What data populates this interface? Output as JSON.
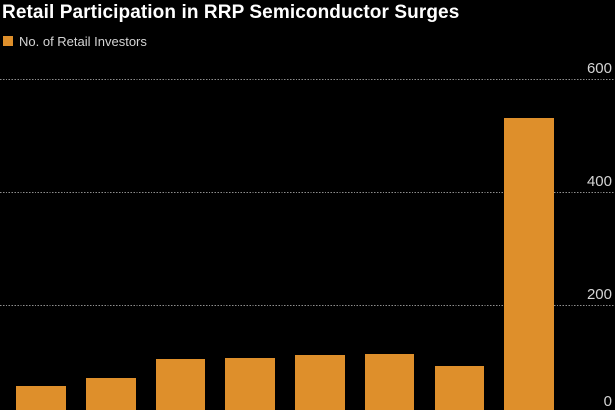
{
  "title": "Retail Participation in RRP Semiconductor Surges",
  "legend": {
    "label": "No. of Retail Investors"
  },
  "colors": {
    "background": "#000000",
    "bar": "#DE8F2B",
    "title_text": "#FFFFFF",
    "axis_text": "#D5D5D5",
    "gridline": "#8F8F8F"
  },
  "y_axis": {
    "tick_labels": [
      "600",
      "400",
      "200",
      "0"
    ],
    "position": "right"
  },
  "chart_data": {
    "type": "bar",
    "title": "Retail Participation in RRP Semiconductor Surges",
    "categories": [
      "",
      "",
      "",
      "",
      "",
      "",
      "",
      ""
    ],
    "series": [
      {
        "name": "No. of Retail Investors",
        "values": [
          55,
          70,
          103,
          106,
          110,
          112,
          92,
          530
        ]
      }
    ],
    "xlabel": "",
    "ylabel": "",
    "ylim": [
      0,
      600
    ],
    "yticks": [
      600,
      400,
      200,
      0
    ],
    "grid": "horizontal-dotted",
    "legend_position": "top-left",
    "y_axis_side": "right",
    "x_axis_labels_visible": false,
    "bars_clipped_at_bottom": true
  }
}
